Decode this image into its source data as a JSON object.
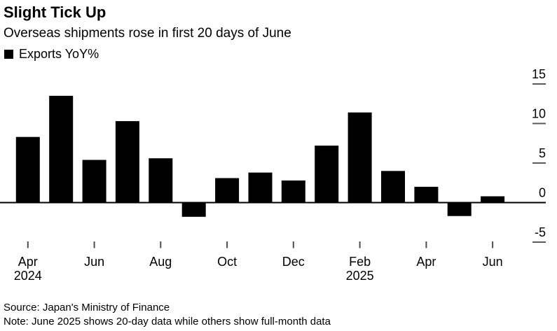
{
  "header": {
    "title": "Slight Tick Up",
    "subtitle": "Overseas shipments rose in first 20 days of June"
  },
  "legend": {
    "label": "Exports YoY%",
    "swatch_color": "#000000"
  },
  "chart_data": {
    "type": "bar",
    "title": "Slight Tick Up",
    "subtitle": "Overseas shipments rose in first 20 days of June",
    "categories": [
      "Apr 2024",
      "May 2024",
      "Jun 2024",
      "Jul 2024",
      "Aug 2024",
      "Sep 2024",
      "Oct 2024",
      "Nov 2024",
      "Dec 2024",
      "Jan 2025",
      "Feb 2025",
      "Mar 2025",
      "Apr 2025",
      "May 2025",
      "Jun 2025"
    ],
    "series": [
      {
        "name": "Exports YoY%",
        "values": [
          8.3,
          13.5,
          5.4,
          10.3,
          5.6,
          -1.8,
          3.1,
          3.8,
          2.8,
          7.2,
          11.4,
          4.0,
          2.0,
          -1.7,
          0.8
        ]
      }
    ],
    "ylabel": "Exports YoY%",
    "xlabel": "",
    "ylim": [
      -6,
      15.5
    ],
    "yticks": [
      {
        "value": 15,
        "label": "15"
      },
      {
        "value": 10,
        "label": "10"
      },
      {
        "value": 5,
        "label": "5"
      },
      {
        "value": 0,
        "label": "0"
      },
      {
        "value": -5,
        "label": "-5"
      }
    ],
    "x_ticks": [
      {
        "index": 0,
        "label": "Apr",
        "year": "2024"
      },
      {
        "index": 2,
        "label": "Jun"
      },
      {
        "index": 4,
        "label": "Aug"
      },
      {
        "index": 6,
        "label": "Oct"
      },
      {
        "index": 8,
        "label": "Dec"
      },
      {
        "index": 10,
        "label": "Feb",
        "year": "2025"
      },
      {
        "index": 12,
        "label": "Apr"
      },
      {
        "index": 14,
        "label": "Jun"
      }
    ],
    "grid": false,
    "legend_position": "top-left",
    "colors": {
      "bar": "#000000",
      "axis": "#000000",
      "ytick_dash": "#595959",
      "xtick": "#4d4d4d",
      "text": "#000000"
    }
  },
  "footer": {
    "source": "Source: Japan's Ministry of Finance",
    "note": "Note: June 2025 shows 20-day data while others show full-month data"
  }
}
